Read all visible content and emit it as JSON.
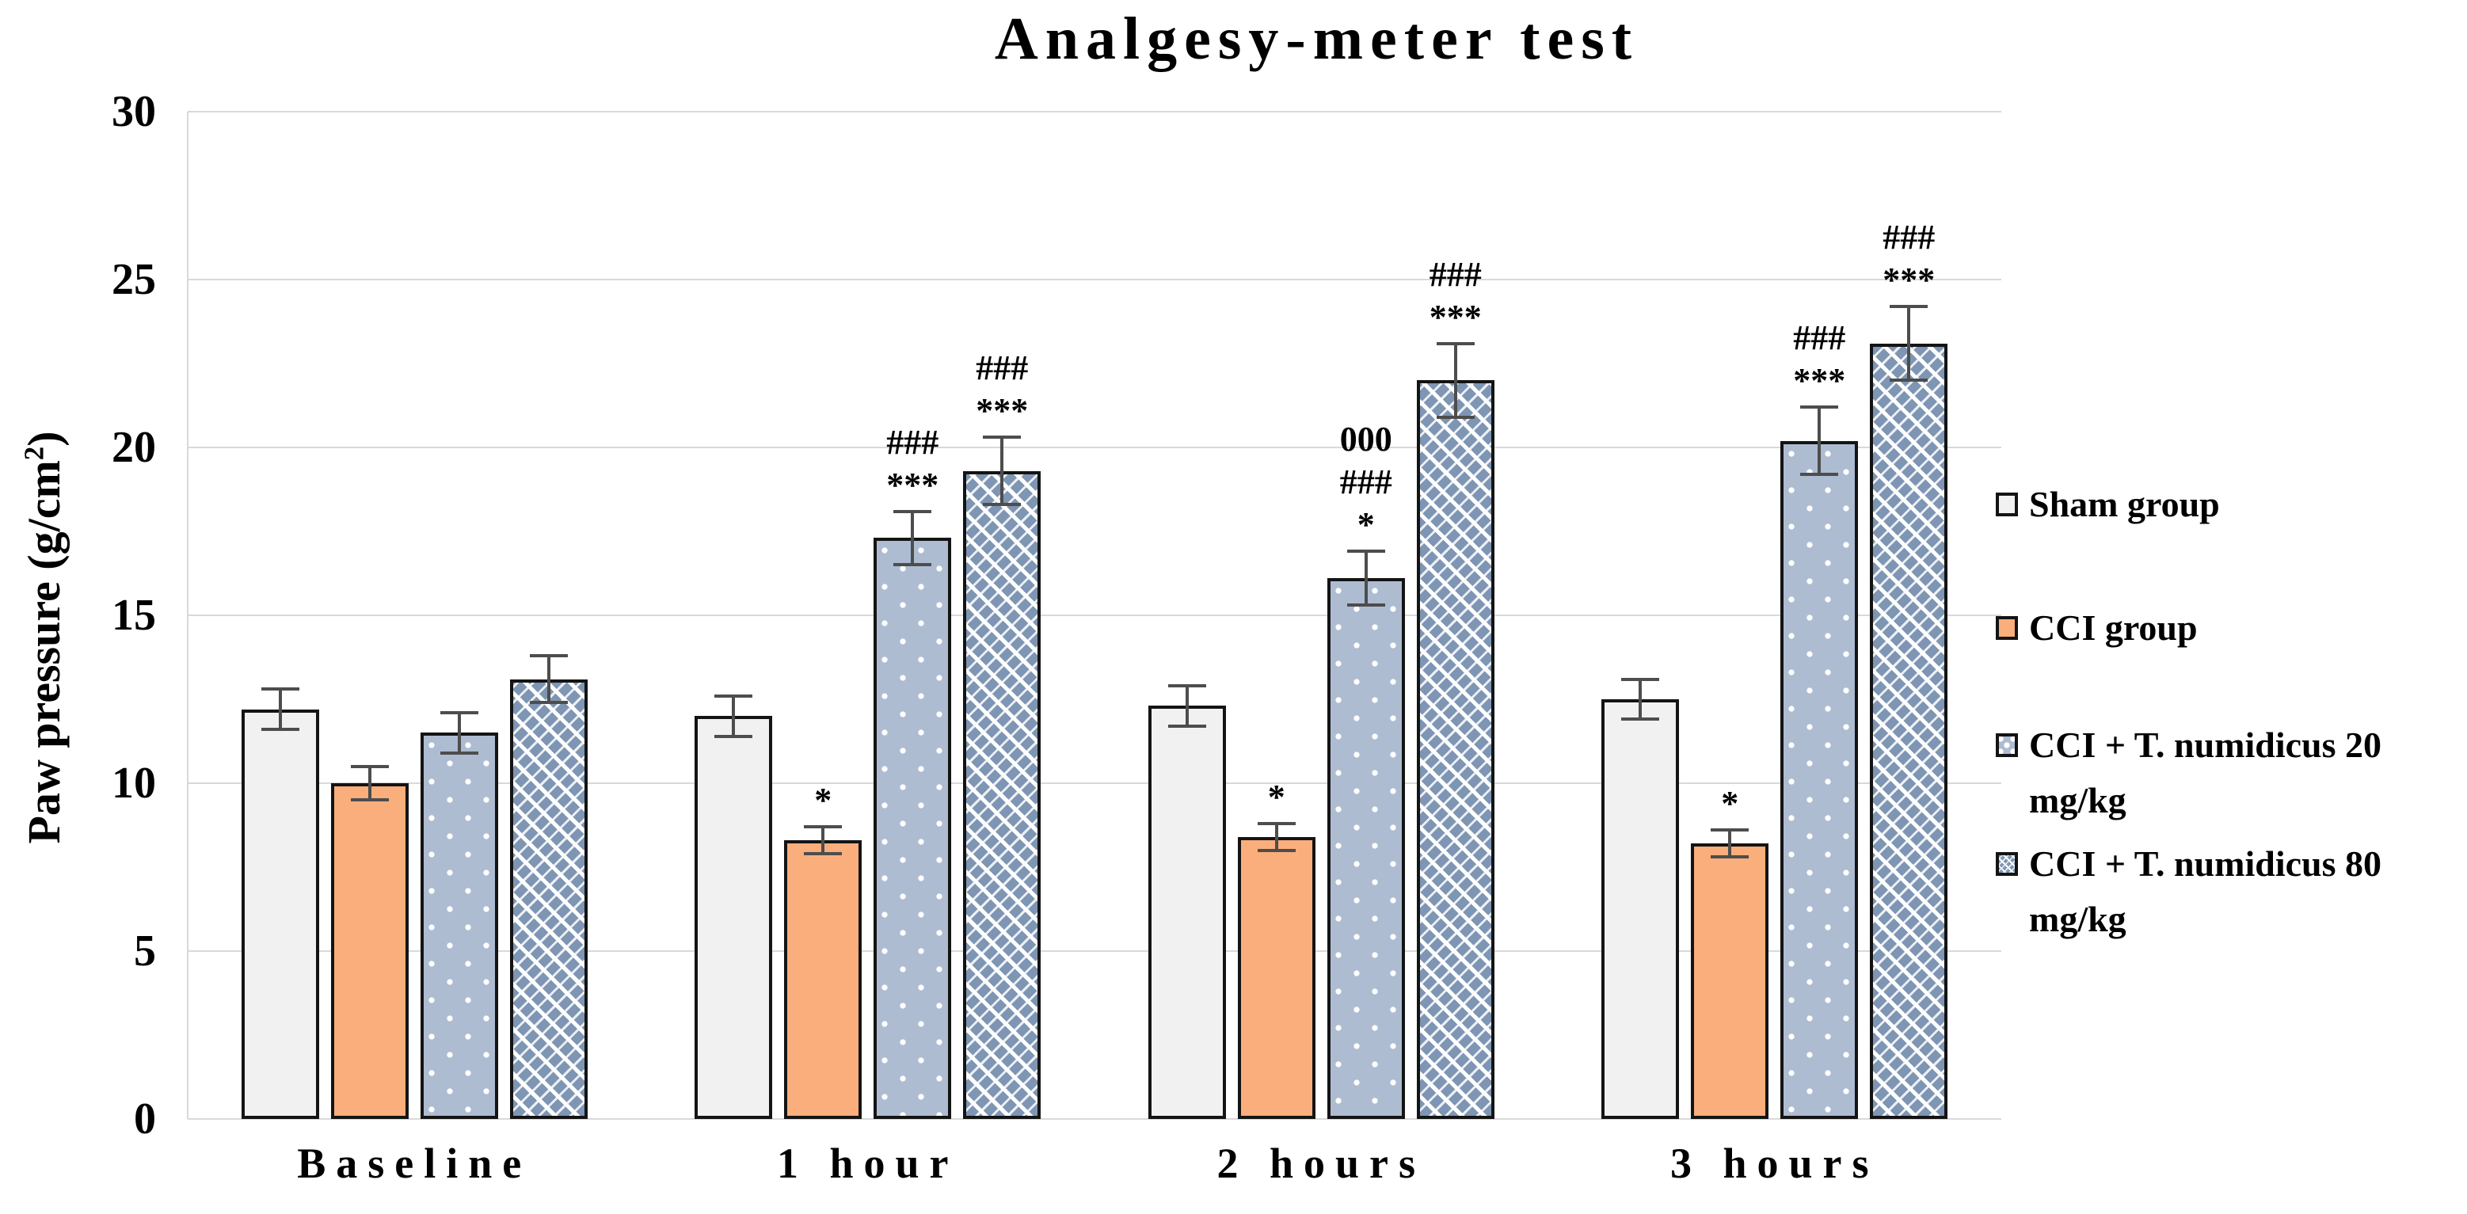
{
  "colors": {
    "background": "#ffffff",
    "text": "#000000",
    "grid": "#d9d9d9",
    "axis": "#d9d9d9",
    "error_bar": "#4d4d4d",
    "bar_border": "#141414",
    "sham_fill": "#f1f1f1",
    "cci_fill": "#f9ae7c",
    "t20_fill": "#aebcd2",
    "t80_fill": "#7e96b4"
  },
  "chart_data": {
    "type": "bar",
    "title": "Analgesy-meter test",
    "ylabel": "Paw pressure (g/cm2)",
    "ylabel_parts": {
      "prefix": "Paw pressure (g/cm",
      "sup": "2",
      "suffix": ")"
    },
    "xlabel": "",
    "ylim": [
      0,
      30
    ],
    "yticks": [
      0,
      5,
      10,
      15,
      20,
      25,
      30
    ],
    "grid": true,
    "legend_position": "right",
    "categories": [
      "Baseline",
      "1 hour",
      "2 hours",
      "3 hours"
    ],
    "series": [
      {
        "id": "sham",
        "name": "Sham group",
        "legend_lines": [
          "Sham group"
        ],
        "color": "#f1f1f1",
        "pattern": "plain",
        "values": [
          12.2,
          12.0,
          12.3,
          12.5
        ],
        "errors": [
          0.6,
          0.6,
          0.6,
          0.6
        ],
        "annotations": [
          [],
          [],
          [],
          []
        ]
      },
      {
        "id": "cci",
        "name": "CCI group",
        "legend_lines": [
          "CCI group"
        ],
        "color": "#f9ae7c",
        "pattern": "plain",
        "values": [
          10.0,
          8.3,
          8.4,
          8.2
        ],
        "errors": [
          0.5,
          0.4,
          0.4,
          0.4
        ],
        "annotations": [
          [],
          [
            "*"
          ],
          [
            "*"
          ],
          [
            "*"
          ]
        ]
      },
      {
        "id": "t20",
        "name": "CCI + T. numidicus 20 mg/kg",
        "legend_lines": [
          "CCI + T. numidicus 20",
          "mg/kg"
        ],
        "color": "#aebcd2",
        "pattern": "dots",
        "values": [
          11.5,
          17.3,
          16.1,
          20.2
        ],
        "errors": [
          0.6,
          0.8,
          0.8,
          1.0
        ],
        "annotations": [
          [],
          [
            "###",
            "***"
          ],
          [
            "000",
            "###",
            "*"
          ],
          [
            "###",
            "***"
          ]
        ]
      },
      {
        "id": "t80",
        "name": "CCI + T. numidicus 80 mg/kg",
        "legend_lines": [
          "CCI + T. numidicus 80",
          "mg/kg"
        ],
        "color": "#7e96b4",
        "pattern": "chain",
        "values": [
          13.1,
          19.3,
          22.0,
          23.1
        ],
        "errors": [
          0.7,
          1.0,
          1.1,
          1.1
        ],
        "annotations": [
          [],
          [
            "###",
            "***"
          ],
          [
            "###",
            "***"
          ],
          [
            "###",
            "***"
          ]
        ]
      }
    ]
  }
}
